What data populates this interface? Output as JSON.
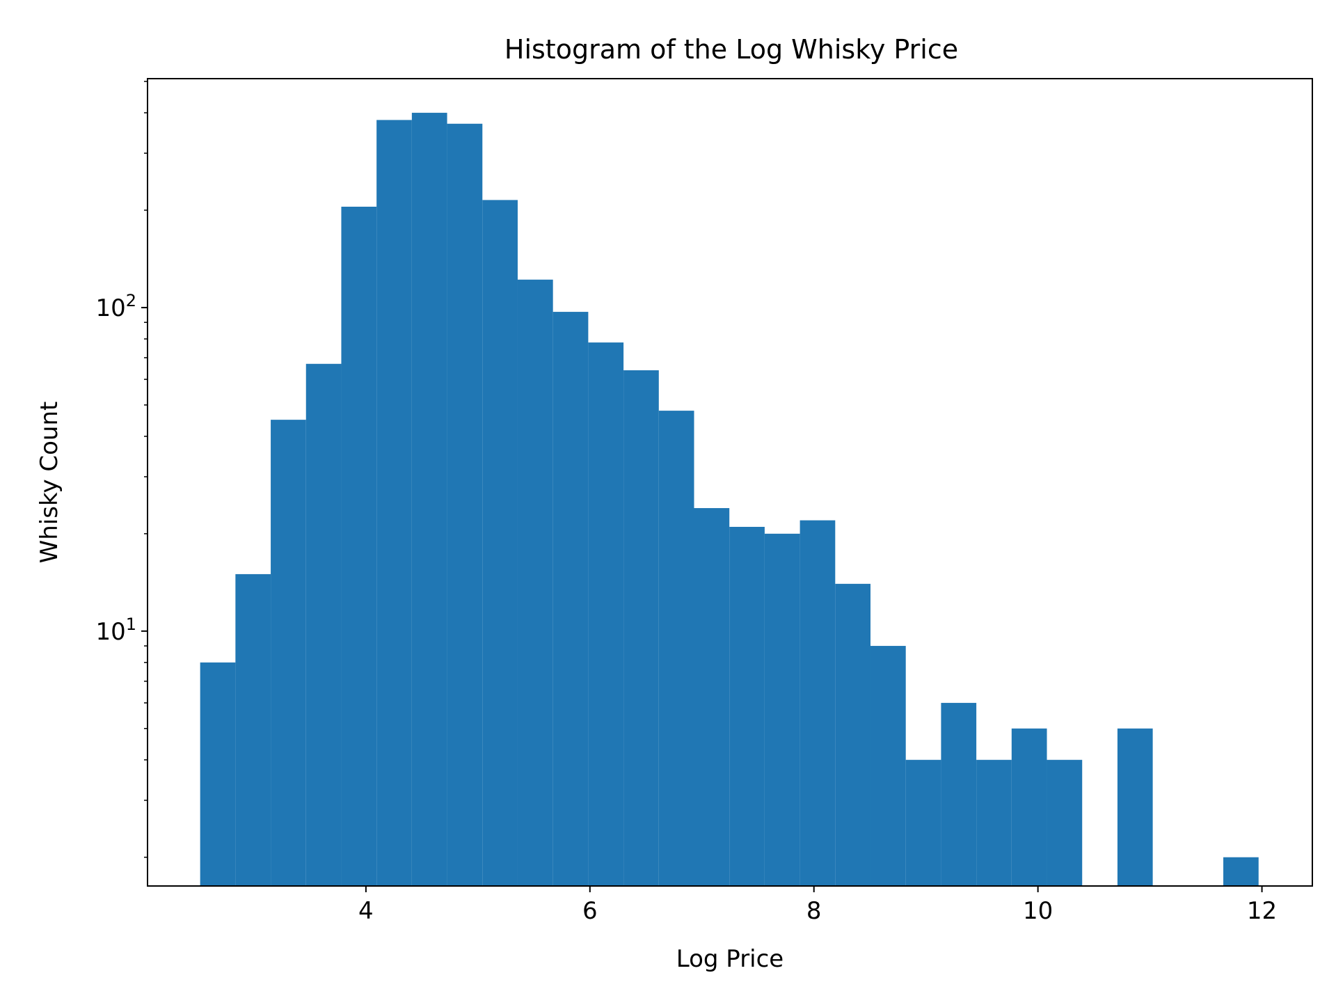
{
  "chart_data": {
    "type": "bar",
    "title": "Histogram of the Log Whisky Price",
    "xlabel": "Log Price",
    "ylabel": "Whisky Count",
    "yscale": "log",
    "grid": false,
    "legend": "none",
    "bar_color": "#2077b4",
    "xlim": [
      2.05,
      12.45
    ],
    "ylim": [
      1.63,
      510
    ],
    "x_ticks": [
      {
        "value": 4,
        "label": "4"
      },
      {
        "value": 6,
        "label": "6"
      },
      {
        "value": 8,
        "label": "8"
      },
      {
        "value": 10,
        "label": "10"
      },
      {
        "value": 12,
        "label": "12"
      }
    ],
    "y_major_ticks": [
      {
        "value": 10,
        "base": "10",
        "exp": "1"
      },
      {
        "value": 100,
        "base": "10",
        "exp": "2"
      }
    ],
    "bins": [
      {
        "x0": 2.52,
        "x1": 2.835,
        "count": 8
      },
      {
        "x0": 2.835,
        "x1": 3.15,
        "count": 15
      },
      {
        "x0": 3.15,
        "x1": 3.465,
        "count": 45
      },
      {
        "x0": 3.465,
        "x1": 3.78,
        "count": 67
      },
      {
        "x0": 3.78,
        "x1": 4.095,
        "count": 205
      },
      {
        "x0": 4.095,
        "x1": 4.41,
        "count": 380
      },
      {
        "x0": 4.41,
        "x1": 4.725,
        "count": 400
      },
      {
        "x0": 4.725,
        "x1": 5.04,
        "count": 370
      },
      {
        "x0": 5.04,
        "x1": 5.355,
        "count": 215
      },
      {
        "x0": 5.355,
        "x1": 5.67,
        "count": 122
      },
      {
        "x0": 5.67,
        "x1": 5.985,
        "count": 97
      },
      {
        "x0": 5.985,
        "x1": 6.3,
        "count": 78
      },
      {
        "x0": 6.3,
        "x1": 6.615,
        "count": 64
      },
      {
        "x0": 6.615,
        "x1": 6.93,
        "count": 48
      },
      {
        "x0": 6.93,
        "x1": 7.245,
        "count": 24
      },
      {
        "x0": 7.245,
        "x1": 7.56,
        "count": 21
      },
      {
        "x0": 7.56,
        "x1": 7.875,
        "count": 20
      },
      {
        "x0": 7.875,
        "x1": 8.19,
        "count": 22
      },
      {
        "x0": 8.19,
        "x1": 8.505,
        "count": 14
      },
      {
        "x0": 8.505,
        "x1": 8.82,
        "count": 9
      },
      {
        "x0": 8.82,
        "x1": 9.135,
        "count": 4
      },
      {
        "x0": 9.135,
        "x1": 9.45,
        "count": 6
      },
      {
        "x0": 9.45,
        "x1": 9.765,
        "count": 4
      },
      {
        "x0": 9.765,
        "x1": 10.08,
        "count": 5
      },
      {
        "x0": 10.08,
        "x1": 10.395,
        "count": 4
      },
      {
        "x0": 10.395,
        "x1": 10.71,
        "count": 0
      },
      {
        "x0": 10.71,
        "x1": 11.025,
        "count": 5
      },
      {
        "x0": 11.025,
        "x1": 11.34,
        "count": 0
      },
      {
        "x0": 11.34,
        "x1": 11.655,
        "count": 0
      },
      {
        "x0": 11.655,
        "x1": 11.97,
        "count": 2
      }
    ]
  }
}
